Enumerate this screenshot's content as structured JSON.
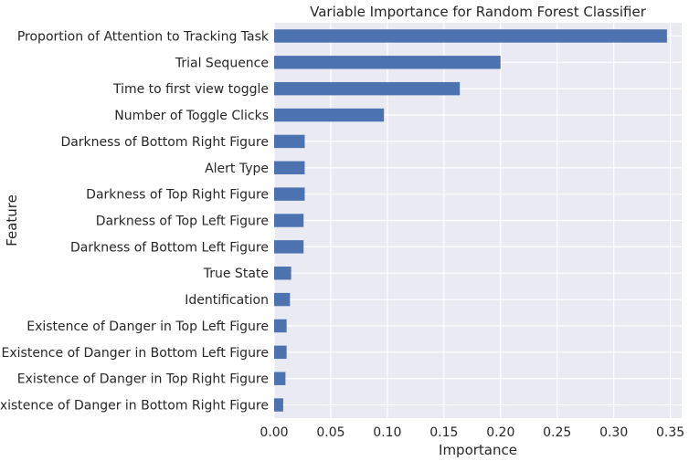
{
  "chart_data": {
    "type": "bar",
    "orientation": "horizontal",
    "title": "Variable Importance for Random Forest Classifier",
    "xlabel": "Importance",
    "ylabel": "Feature",
    "xlim": [
      0,
      0.36
    ],
    "xticks": [
      "0.00",
      "0.05",
      "0.10",
      "0.15",
      "0.20",
      "0.25",
      "0.30",
      "0.35"
    ],
    "grid": true,
    "categories": [
      "Proportion of Attention to Tracking Task",
      "Trial Sequence",
      "Time to first view toggle",
      "Number of Toggle Clicks",
      "Darkness of Bottom Right Figure",
      "Alert Type",
      "Darkness of Top Right Figure",
      "Darkness of Top Left Figure",
      "Darkness of Bottom Left Figure",
      "True State",
      "Identification",
      "Existence of Danger in Top Left Figure",
      "Existence of Danger in Bottom Left Figure",
      "Existence of Danger in Top Right Figure",
      "Existence of Danger in Bottom Right Figure"
    ],
    "values": [
      0.347,
      0.2,
      0.164,
      0.097,
      0.027,
      0.027,
      0.027,
      0.026,
      0.026,
      0.015,
      0.014,
      0.011,
      0.011,
      0.01,
      0.008
    ],
    "colors": {
      "bar": "#4c72b0",
      "plot_bg": "#eaeaf2",
      "grid": "#ffffff"
    }
  }
}
